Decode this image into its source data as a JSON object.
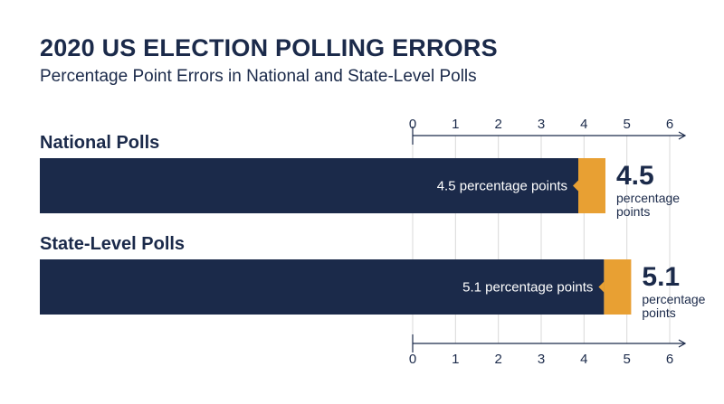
{
  "chart_data": {
    "type": "bar",
    "orientation": "horizontal",
    "title": "2020 US ELECTION POLLING ERRORS",
    "subtitle": "Percentage Point Errors in National and State-Level Polls",
    "categories": [
      "National Polls",
      "State-Level Polls"
    ],
    "values": [
      4.5,
      5.1
    ],
    "data_labels": [
      "4.5 percentage points",
      "5.1 percentage points"
    ],
    "callouts": [
      {
        "value": "4.5",
        "unit_line1": "percentage",
        "unit_line2": "points"
      },
      {
        "value": "5.1",
        "unit_line1": "percentage",
        "unit_line2": "points"
      }
    ],
    "xlim": [
      0,
      6
    ],
    "xticks": [
      "0",
      "1",
      "2",
      "3",
      "4",
      "5",
      "6"
    ],
    "grid": true,
    "colors": {
      "bar": "#1b2a4a",
      "accent": "#e8a033",
      "grid": "#d9d9d9",
      "axis": "#1b2a4a"
    }
  }
}
